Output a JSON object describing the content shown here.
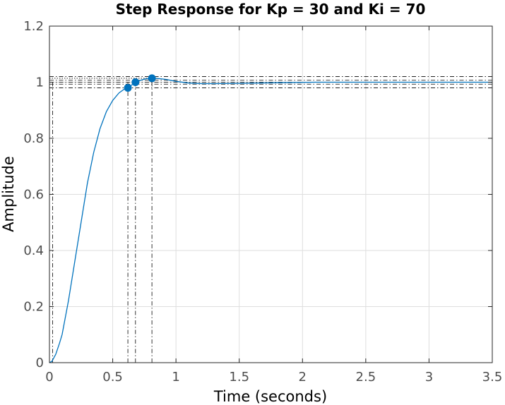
{
  "chart_data": {
    "type": "line",
    "title": "Step Response for Kp = 30 and Ki = 70",
    "xlabel": "Time (seconds)",
    "ylabel": "Amplitude",
    "xlim": [
      0,
      3.5
    ],
    "ylim": [
      0,
      1.2
    ],
    "xticks": [
      "0",
      "0.5",
      "1",
      "1.5",
      "2",
      "2.5",
      "3",
      "3.5"
    ],
    "yticks": [
      "0",
      "0.2",
      "0.4",
      "0.6",
      "0.8",
      "1",
      "1.2"
    ],
    "grid": true,
    "series": [
      {
        "color": "#0072bd",
        "x": [
          0,
          0.02,
          0.05,
          0.08,
          0.1,
          0.15,
          0.2,
          0.25,
          0.3,
          0.35,
          0.4,
          0.45,
          0.5,
          0.55,
          0.6,
          0.62,
          0.65,
          0.68,
          0.72,
          0.76,
          0.81,
          0.86,
          0.92,
          1.0,
          1.1,
          1.2,
          1.3,
          1.5,
          1.8,
          2.1,
          2.5,
          3.0,
          3.5
        ],
        "y": [
          0,
          0.005,
          0.03,
          0.07,
          0.1,
          0.22,
          0.36,
          0.5,
          0.64,
          0.75,
          0.835,
          0.895,
          0.935,
          0.962,
          0.978,
          0.982,
          0.99,
          0.999,
          1.007,
          1.012,
          1.014,
          1.013,
          1.01,
          1.003,
          0.997,
          0.995,
          0.995,
          0.996,
          0.998,
          1.0,
          1.0,
          1.0,
          1.0
        ]
      }
    ],
    "markers": [
      {
        "x": 0.62,
        "y": 0.98,
        "color": "#0072bd"
      },
      {
        "x": 0.68,
        "y": 1.0,
        "color": "#0072bd"
      },
      {
        "x": 0.81,
        "y": 1.014,
        "color": "#0072bd"
      }
    ],
    "reference_lines": {
      "horizontal": [
        0.98,
        0.993,
        1.0,
        1.007,
        1.02
      ],
      "vertical": [
        0.025,
        0.62,
        0.68,
        0.81
      ],
      "peak_dotted_y": 1.014,
      "color": "#000000"
    }
  }
}
